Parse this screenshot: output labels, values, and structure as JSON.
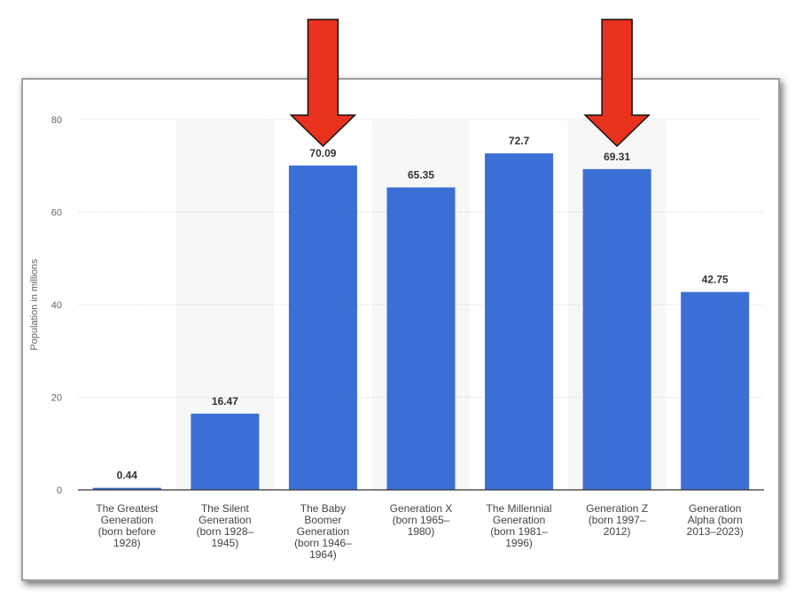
{
  "chart_data": {
    "type": "bar",
    "title": "",
    "ylabel": "Population in millions",
    "xlabel": "",
    "ylim": [
      0,
      80
    ],
    "yticks": [
      0,
      20,
      40,
      60,
      80
    ],
    "grid": true,
    "bar_color": "#3b6fd6",
    "arrow_color": "#e8321e",
    "categories": [
      "The Greatest Generation (born before 1928)",
      "The Silent Generation (born 1928–1945)",
      "The Baby Boomer Generation (born 1946–1964)",
      "Generation X (born 1965–1980)",
      "The Millennial Generation (born 1981–1996)",
      "Generation Z (born 1997–2012)",
      "Generation Alpha (born 2013–2023)"
    ],
    "category_lines": [
      [
        "The Greatest",
        "Generation",
        "(born before",
        "1928)"
      ],
      [
        "The Silent",
        "Generation",
        "(born 1928–",
        "1945)"
      ],
      [
        "The Baby",
        "Boomer",
        "Generation",
        "(born 1946–",
        "1964)"
      ],
      [
        "Generation X",
        "(born 1965–",
        "1980)"
      ],
      [
        "The Millennial",
        "Generation",
        "(born 1981–",
        "1996)"
      ],
      [
        "Generation Z",
        "(born 1997–",
        "2012)"
      ],
      [
        "Generation",
        "Alpha (born",
        "2013–2023)"
      ]
    ],
    "values": [
      0.44,
      16.47,
      70.09,
      65.35,
      72.7,
      69.31,
      42.75
    ],
    "value_labels": [
      "0.44",
      "16.47",
      "70.09",
      "65.35",
      "72.7",
      "69.31",
      "42.75"
    ],
    "highlighted_categories": [
      2,
      5
    ]
  }
}
